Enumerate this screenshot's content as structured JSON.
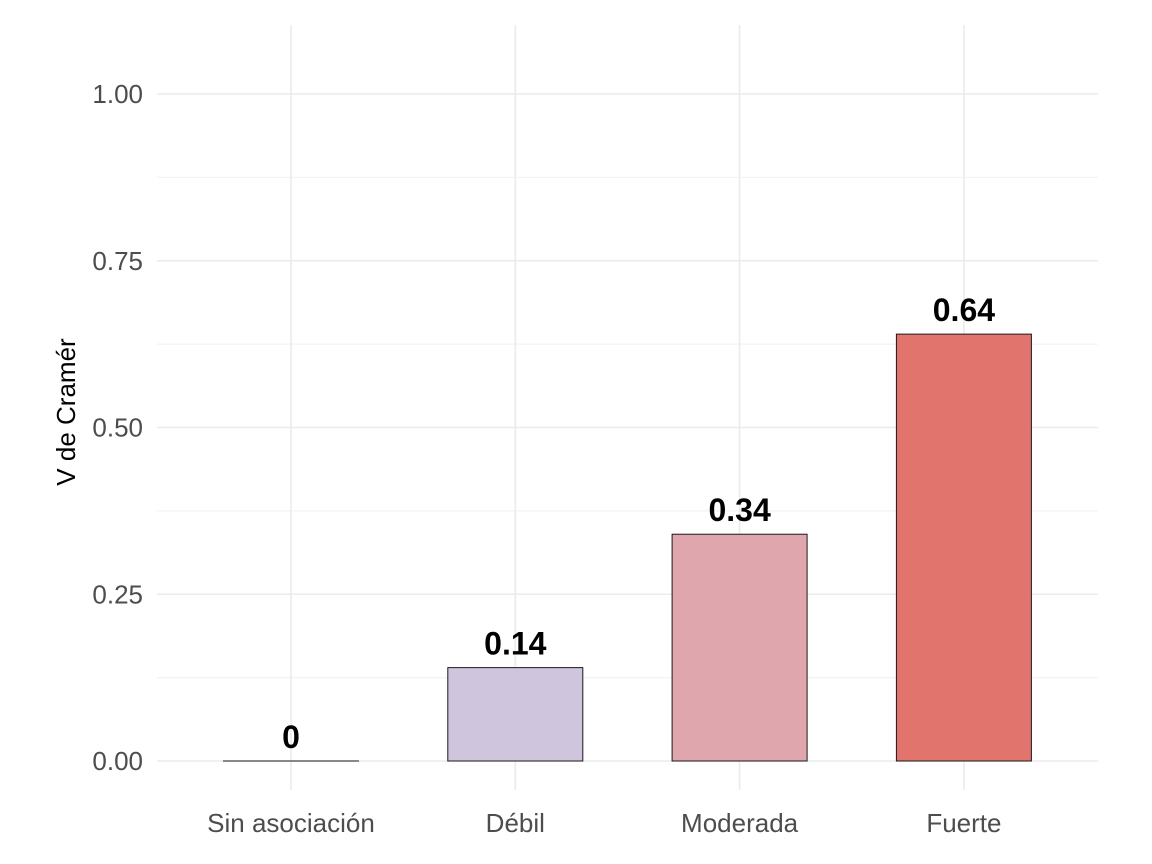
{
  "chart_data": {
    "type": "bar",
    "categories": [
      "Sin asociación",
      "Débil",
      "Moderada",
      "Fuerte"
    ],
    "values": [
      0,
      0.14,
      0.34,
      0.64
    ],
    "data_labels": [
      "0",
      "0.14",
      "0.34",
      "0.64"
    ],
    "colors": [
      "#1a1a1a",
      "#cfc5dd",
      "#dfa6ae",
      "#e1756e"
    ],
    "title": "",
    "xlabel": "",
    "ylabel": "V de Cramér",
    "ylim": [
      -0.04,
      1.1
    ],
    "yticks": [
      0,
      0.25,
      0.5,
      0.75,
      1.0
    ],
    "ytick_labels": [
      "0.00",
      "0.25",
      "0.50",
      "0.75",
      "1.00"
    ],
    "grid": true,
    "legend": "none"
  }
}
